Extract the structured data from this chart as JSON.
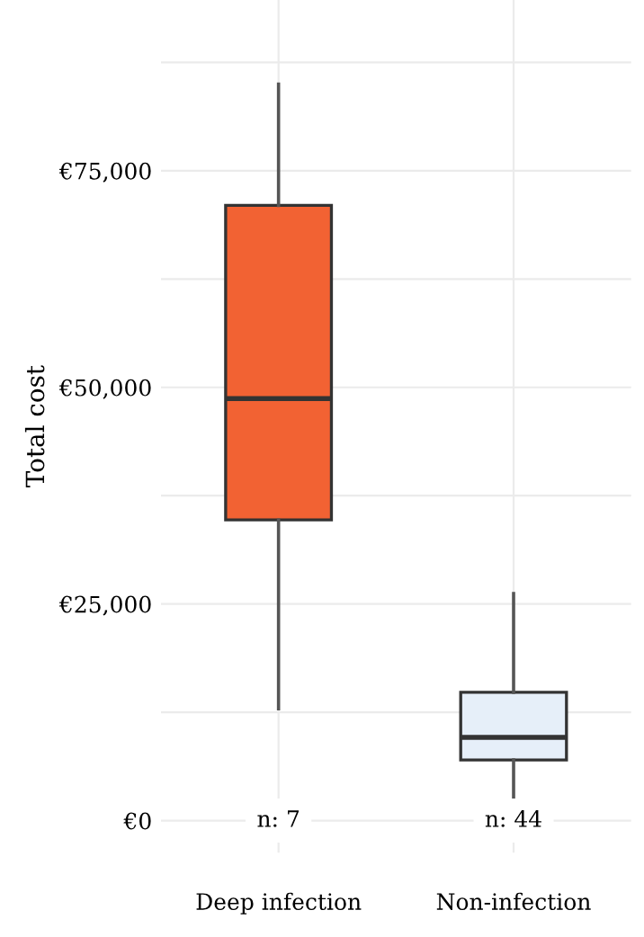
{
  "chart_data": {
    "type": "box",
    "ylabel": "Total cost",
    "categories": [
      "Deep infection",
      "Non-infection"
    ],
    "boxes": [
      {
        "low": 12900,
        "q1": 34700,
        "median": 48700,
        "q3": 71000,
        "high": 85000
      },
      {
        "low": 2700,
        "q1": 7000,
        "median": 9600,
        "q3": 14800,
        "high": 26200
      }
    ],
    "colors": [
      "#f26233",
      "#e6eff9"
    ],
    "ylim": [
      -3700,
      94700
    ],
    "yticks": [
      {
        "value": 0,
        "label": "€0"
      },
      {
        "value": 12500,
        "label": null
      },
      {
        "value": 25000,
        "label": "€25,000"
      },
      {
        "value": 37500,
        "label": null
      },
      {
        "value": 50000,
        "label": "€50,000"
      },
      {
        "value": 62500,
        "label": null
      },
      {
        "value": 75000,
        "label": "€75,000"
      },
      {
        "value": 87500,
        "label": null
      }
    ],
    "annotations": [
      "n: 7",
      "n: 44"
    ],
    "grid": true,
    "legend": false
  }
}
